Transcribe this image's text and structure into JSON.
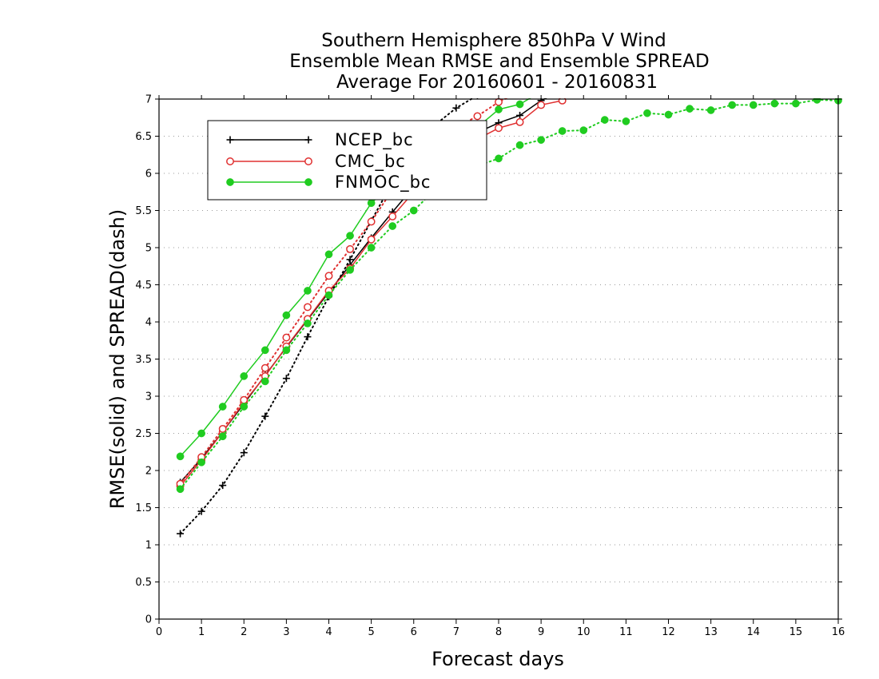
{
  "chart_data": {
    "type": "line",
    "title_lines": [
      "Southern Hemisphere 850hPa V Wind",
      "Ensemble Mean RMSE and Ensemble SPREAD",
      "Average For 20160601 - 20160831"
    ],
    "xlabel": "Forecast days",
    "ylabel": "RMSE(solid) and SPREAD(dash)",
    "xlim": [
      0,
      16
    ],
    "ylim": [
      0,
      7
    ],
    "x_ticks": [
      "0",
      "1",
      "2",
      "3",
      "4",
      "5",
      "6",
      "7",
      "8",
      "9",
      "10",
      "11",
      "12",
      "13",
      "14",
      "15",
      "16"
    ],
    "y_ticks": [
      "0",
      "0.5",
      "1",
      "1.5",
      "2",
      "2.5",
      "3",
      "3.5",
      "4",
      "4.5",
      "5",
      "5.5",
      "6",
      "6.5",
      "7"
    ],
    "grid": "horizontal dotted",
    "legend_position": "top-left",
    "x": [
      0.5,
      1,
      1.5,
      2,
      2.5,
      3,
      3.5,
      4,
      4.5,
      5,
      5.5,
      6,
      6.5,
      7,
      7.5,
      8,
      8.5,
      9,
      9.5,
      10,
      10.5,
      11,
      11.5,
      12,
      12.5,
      13,
      13.5,
      14,
      14.5,
      15,
      15.5,
      16
    ],
    "series": [
      {
        "name": "NCEP_bc",
        "color": "#000000",
        "marker": "plus",
        "rmse": [
          1.84,
          2.16,
          2.52,
          2.9,
          3.28,
          3.66,
          4.03,
          4.4,
          4.77,
          5.13,
          5.48,
          5.82,
          6.12,
          6.35,
          6.55,
          6.68,
          6.78,
          6.98,
          7.12
        ],
        "spread": [
          1.15,
          1.45,
          1.8,
          2.24,
          2.73,
          3.24,
          3.8,
          4.34,
          4.84,
          5.36,
          5.88,
          6.4,
          6.65,
          6.88,
          7.05
        ]
      },
      {
        "name": "CMC_bc",
        "color": "#e03030",
        "marker": "open-circle",
        "rmse": [
          1.79,
          2.14,
          2.52,
          2.92,
          3.27,
          3.67,
          4.04,
          4.42,
          4.72,
          5.11,
          5.42,
          5.75,
          6.05,
          6.3,
          6.46,
          6.61,
          6.69,
          6.92,
          6.98
        ],
        "spread": [
          1.82,
          2.18,
          2.56,
          2.95,
          3.38,
          3.79,
          4.2,
          4.62,
          4.98,
          5.35,
          5.78,
          6.15,
          6.46,
          6.62,
          6.77,
          6.96,
          7.1
        ]
      },
      {
        "name": "FNMOC_bc",
        "color": "#20cc20",
        "marker": "filled-circle",
        "rmse": [
          2.19,
          2.5,
          2.86,
          3.27,
          3.62,
          4.09,
          4.42,
          4.91,
          5.16,
          5.6,
          5.85,
          6.12,
          6.32,
          6.5,
          6.62,
          6.86,
          6.93,
          7.1
        ],
        "spread": [
          1.75,
          2.11,
          2.46,
          2.86,
          3.2,
          3.62,
          3.98,
          4.36,
          4.7,
          5.0,
          5.29,
          5.5,
          5.78,
          5.98,
          6.1,
          6.2,
          6.38,
          6.45,
          6.57,
          6.58,
          6.72,
          6.7,
          6.81,
          6.79,
          6.87,
          6.85,
          6.92,
          6.92,
          6.94,
          6.94,
          6.99,
          6.98
        ]
      }
    ]
  }
}
